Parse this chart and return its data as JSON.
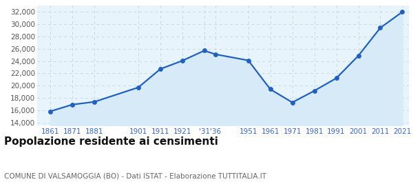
{
  "years": [
    1861,
    1871,
    1881,
    1901,
    1911,
    1921,
    1931,
    1936,
    1951,
    1961,
    1971,
    1981,
    1991,
    2001,
    2011,
    2021
  ],
  "population": [
    15800,
    16900,
    17350,
    19700,
    22700,
    24050,
    25700,
    25100,
    24100,
    19400,
    17250,
    19150,
    21200,
    24850,
    29400,
    32000
  ],
  "x_tick_labels": [
    "1861",
    "1871",
    "1881",
    "1901",
    "1911",
    "1921",
    "'31",
    "'36",
    "1951",
    "1961",
    "1971",
    "1981",
    "1991",
    "2001",
    "2011",
    "2021"
  ],
  "y_ticks": [
    14000,
    16000,
    18000,
    20000,
    22000,
    24000,
    26000,
    28000,
    30000,
    32000
  ],
  "ylim": [
    13500,
    33000
  ],
  "xlim": [
    1855,
    2024
  ],
  "line_color": "#2060c0",
  "fill_color": "#d6eaf8",
  "marker_color": "#2060c0",
  "bg_color": "#ffffff",
  "plot_bg_color": "#e8f4fc",
  "grid_color": "#c8d8e8",
  "title": "Popolazione residente ai censimenti",
  "subtitle": "COMUNE DI VALSAMOGGIA (BO) - Dati ISTAT - Elaborazione TUTTITALIA.IT",
  "title_fontsize": 11,
  "subtitle_fontsize": 7.5,
  "ytick_fontsize": 7.5,
  "xtick_fontsize": 7.5
}
